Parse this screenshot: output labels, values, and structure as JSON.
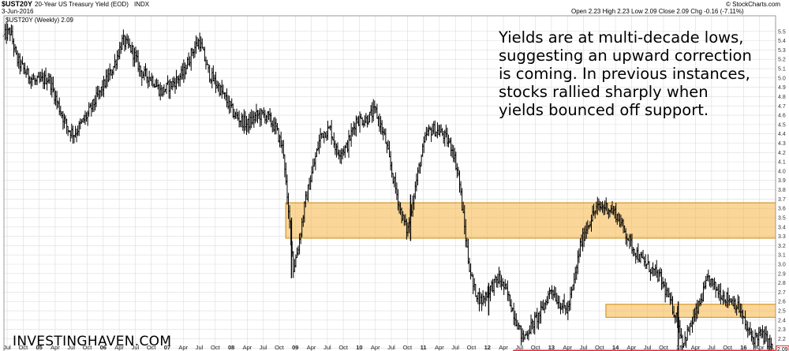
{
  "header": {
    "symbol": "$UST20Y",
    "description": "20-Year US Treasury Yield (EOD)",
    "exchange": "INDX",
    "date": "3-Jun-2016",
    "copyright": "© StockCharts.com",
    "quote": "Open 2.23  High 2.23  Low 2.09  Close 2.09  Chg -0.16 (-7.11%)",
    "quote_change_color": "#d40000"
  },
  "legend": {
    "text": "$UST20Y (Weekly) 2.09"
  },
  "annotation": {
    "lines": [
      "Yields are at multi-decade lows,",
      "suggesting an upward correction",
      "is coming. In previous instances,",
      "stocks rallied sharply when",
      "yields bounced off support."
    ]
  },
  "watermark": "INVESTINGHAVEN.COM",
  "colors": {
    "support_zone": "#f5b543",
    "support_line": "#e8253a",
    "price_bars": "#000000",
    "grid": "#dddddd",
    "last_price_marker": "#e00000"
  },
  "chart_data": {
    "type": "ohlc",
    "frequency": "weekly",
    "y_axis": {
      "position": "right",
      "min": 2.0,
      "max": 5.5,
      "ticks": [
        "5.5",
        "5.4",
        "5.3",
        "5.2",
        "5.1",
        "5.0",
        "4.9",
        "4.8",
        "4.7",
        "4.6",
        "4.5",
        "4.4",
        "4.3",
        "4.2",
        "4.1",
        "4.0",
        "3.9",
        "3.8",
        "3.7",
        "3.6",
        "3.5",
        "3.4",
        "3.3",
        "3.2",
        "3.1",
        "3.0",
        "2.9",
        "2.8",
        "2.7",
        "2.6",
        "2.5",
        "2.4",
        "2.3",
        "2.2",
        "2.1"
      ],
      "last_value_label": "2.09"
    },
    "x_axis": {
      "start": 2004.45,
      "end": 2016.5,
      "ticks": [
        {
          "t": 2004.5,
          "label": "Jul"
        },
        {
          "t": 2004.75,
          "label": "Oct"
        },
        {
          "t": 2005.0,
          "label": "05"
        },
        {
          "t": 2005.25,
          "label": "Apr"
        },
        {
          "t": 2005.5,
          "label": "Jul"
        },
        {
          "t": 2005.75,
          "label": "Oct"
        },
        {
          "t": 2006.0,
          "label": "06"
        },
        {
          "t": 2006.25,
          "label": "Apr"
        },
        {
          "t": 2006.5,
          "label": "Jul"
        },
        {
          "t": 2006.75,
          "label": "Oct"
        },
        {
          "t": 2007.0,
          "label": "07"
        },
        {
          "t": 2007.25,
          "label": "Apr"
        },
        {
          "t": 2007.5,
          "label": "Jul"
        },
        {
          "t": 2007.75,
          "label": "Oct"
        },
        {
          "t": 2008.0,
          "label": "08"
        },
        {
          "t": 2008.25,
          "label": "Apr"
        },
        {
          "t": 2008.5,
          "label": "Jul"
        },
        {
          "t": 2008.75,
          "label": "Oct"
        },
        {
          "t": 2009.0,
          "label": "09"
        },
        {
          "t": 2009.25,
          "label": "Apr"
        },
        {
          "t": 2009.5,
          "label": "Jul"
        },
        {
          "t": 2009.75,
          "label": "Oct"
        },
        {
          "t": 2010.0,
          "label": "10"
        },
        {
          "t": 2010.25,
          "label": "Apr"
        },
        {
          "t": 2010.5,
          "label": "Jul"
        },
        {
          "t": 2010.75,
          "label": "Oct"
        },
        {
          "t": 2011.0,
          "label": "11"
        },
        {
          "t": 2011.25,
          "label": "Apr"
        },
        {
          "t": 2011.5,
          "label": "Jul"
        },
        {
          "t": 2011.75,
          "label": "Oct"
        },
        {
          "t": 2012.0,
          "label": "12"
        },
        {
          "t": 2012.25,
          "label": "Apr"
        },
        {
          "t": 2012.5,
          "label": "Jul"
        },
        {
          "t": 2012.75,
          "label": "Oct"
        },
        {
          "t": 2013.0,
          "label": "13"
        },
        {
          "t": 2013.25,
          "label": "Apr"
        },
        {
          "t": 2013.5,
          "label": "Jul"
        },
        {
          "t": 2013.75,
          "label": "Oct"
        },
        {
          "t": 2014.0,
          "label": "14"
        },
        {
          "t": 2014.25,
          "label": "Apr"
        },
        {
          "t": 2014.5,
          "label": "Jul"
        },
        {
          "t": 2014.75,
          "label": "Oct"
        },
        {
          "t": 2015.0,
          "label": "15"
        },
        {
          "t": 2015.25,
          "label": "Apr"
        },
        {
          "t": 2015.5,
          "label": "Jul"
        },
        {
          "t": 2015.75,
          "label": "Oct"
        },
        {
          "t": 2016.0,
          "label": "16"
        },
        {
          "t": 2016.25,
          "label": "Apr"
        }
      ]
    },
    "zones": [
      {
        "from_t": 2008.85,
        "to_t": 2016.5,
        "low": 3.28,
        "high": 3.66
      },
      {
        "from_t": 2013.85,
        "to_t": 2016.5,
        "low": 2.43,
        "high": 2.57
      }
    ],
    "support_line": {
      "from_t": 2012.4,
      "to_t": 2016.5,
      "value": 2.06
    },
    "path_points": [
      [
        2004.45,
        5.45
      ],
      [
        2004.55,
        5.5
      ],
      [
        2004.65,
        5.2
      ],
      [
        2004.8,
        5.05
      ],
      [
        2004.95,
        4.95
      ],
      [
        2005.15,
        5.0
      ],
      [
        2005.3,
        4.7
      ],
      [
        2005.45,
        4.45
      ],
      [
        2005.55,
        4.4
      ],
      [
        2005.75,
        4.6
      ],
      [
        2005.95,
        4.85
      ],
      [
        2006.15,
        5.1
      ],
      [
        2006.3,
        5.4
      ],
      [
        2006.45,
        5.3
      ],
      [
        2006.6,
        5.05
      ],
      [
        2006.75,
        5.0
      ],
      [
        2006.9,
        4.85
      ],
      [
        2007.1,
        4.95
      ],
      [
        2007.25,
        5.05
      ],
      [
        2007.4,
        5.3
      ],
      [
        2007.5,
        5.4
      ],
      [
        2007.65,
        5.05
      ],
      [
        2007.85,
        4.85
      ],
      [
        2008.05,
        4.6
      ],
      [
        2008.25,
        4.5
      ],
      [
        2008.4,
        4.6
      ],
      [
        2008.55,
        4.6
      ],
      [
        2008.7,
        4.45
      ],
      [
        2008.82,
        4.2
      ],
      [
        2008.88,
        3.6
      ],
      [
        2008.92,
        3.4
      ],
      [
        2008.97,
        2.95
      ],
      [
        2009.05,
        3.2
      ],
      [
        2009.15,
        3.65
      ],
      [
        2009.25,
        3.95
      ],
      [
        2009.4,
        4.4
      ],
      [
        2009.55,
        4.45
      ],
      [
        2009.65,
        4.2
      ],
      [
        2009.8,
        4.25
      ],
      [
        2009.95,
        4.55
      ],
      [
        2010.1,
        4.55
      ],
      [
        2010.25,
        4.65
      ],
      [
        2010.4,
        4.35
      ],
      [
        2010.52,
        3.95
      ],
      [
        2010.65,
        3.55
      ],
      [
        2010.75,
        3.35
      ],
      [
        2010.85,
        3.75
      ],
      [
        2010.95,
        4.1
      ],
      [
        2011.05,
        4.4
      ],
      [
        2011.15,
        4.45
      ],
      [
        2011.3,
        4.4
      ],
      [
        2011.45,
        4.25
      ],
      [
        2011.55,
        3.95
      ],
      [
        2011.6,
        3.65
      ],
      [
        2011.7,
        3.05
      ],
      [
        2011.78,
        2.75
      ],
      [
        2011.9,
        2.6
      ],
      [
        2012.05,
        2.75
      ],
      [
        2012.18,
        2.85
      ],
      [
        2012.3,
        2.7
      ],
      [
        2012.45,
        2.4
      ],
      [
        2012.55,
        2.2
      ],
      [
        2012.7,
        2.35
      ],
      [
        2012.85,
        2.5
      ],
      [
        2013.0,
        2.75
      ],
      [
        2013.1,
        2.6
      ],
      [
        2013.25,
        2.5
      ],
      [
        2013.35,
        2.8
      ],
      [
        2013.45,
        3.2
      ],
      [
        2013.55,
        3.4
      ],
      [
        2013.7,
        3.6
      ],
      [
        2013.85,
        3.62
      ],
      [
        2014.0,
        3.55
      ],
      [
        2014.15,
        3.35
      ],
      [
        2014.25,
        3.2
      ],
      [
        2014.4,
        3.05
      ],
      [
        2014.55,
        2.95
      ],
      [
        2014.7,
        2.85
      ],
      [
        2014.85,
        2.6
      ],
      [
        2014.97,
        2.4
      ],
      [
        2015.05,
        2.15
      ],
      [
        2015.15,
        2.3
      ],
      [
        2015.3,
        2.55
      ],
      [
        2015.45,
        2.85
      ],
      [
        2015.55,
        2.75
      ],
      [
        2015.7,
        2.65
      ],
      [
        2015.85,
        2.6
      ],
      [
        2015.95,
        2.5
      ],
      [
        2016.05,
        2.3
      ],
      [
        2016.15,
        2.2
      ],
      [
        2016.25,
        2.25
      ],
      [
        2016.35,
        2.2
      ],
      [
        2016.45,
        2.09
      ]
    ],
    "spikes": [
      {
        "t": 2008.94,
        "low": 2.85,
        "high": 3.5
      },
      {
        "t": 2010.8,
        "low": 3.25,
        "high": 3.75
      },
      {
        "t": 2012.02,
        "low": 2.45,
        "high": 2.8
      },
      {
        "t": 2014.98,
        "low": 2.05,
        "high": 2.6
      }
    ],
    "ohlc": {
      "note": "bars generated deterministically by script along path_points"
    }
  }
}
